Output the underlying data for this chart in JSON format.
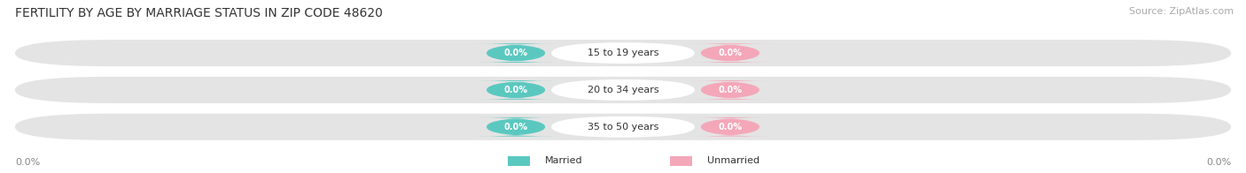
{
  "title": "FERTILITY BY AGE BY MARRIAGE STATUS IN ZIP CODE 48620",
  "source_text": "Source: ZipAtlas.com",
  "categories": [
    "15 to 19 years",
    "20 to 34 years",
    "35 to 50 years"
  ],
  "married_values": [
    0.0,
    0.0,
    0.0
  ],
  "unmarried_values": [
    0.0,
    0.0,
    0.0
  ],
  "married_color": "#5BC8C0",
  "unmarried_color": "#F4A7B9",
  "bar_bg_color": "#E4E4E4",
  "label_text_color": "#FFFFFF",
  "cat_text_color": "#333333",
  "axis_label_color": "#888888",
  "title_color": "#333333",
  "source_color": "#aaaaaa",
  "background_color": "#FFFFFF",
  "x_left_label": "0.0%",
  "x_right_label": "0.0%",
  "legend_married": "Married",
  "legend_unmarried": "Unmarried",
  "title_fontsize": 10,
  "source_fontsize": 8,
  "cat_fontsize": 8,
  "badge_fontsize": 7,
  "axis_fontsize": 8,
  "figsize": [
    14.06,
    1.96
  ],
  "dpi": 100
}
